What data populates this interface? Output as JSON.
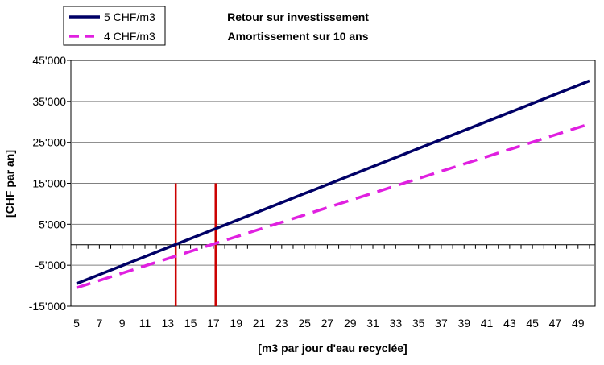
{
  "chart_data": {
    "type": "line",
    "title": "Retour sur investissement",
    "subtitle": "Amortissement sur 10 ans",
    "xlabel": "[m3 par jour d'eau recyclée]",
    "ylabel": "[CHF par an]",
    "xlim": [
      4.5,
      50.5
    ],
    "ylim": [
      -15000,
      45000
    ],
    "x_ticks": [
      5,
      7,
      9,
      11,
      13,
      15,
      17,
      19,
      21,
      23,
      25,
      27,
      29,
      31,
      33,
      35,
      37,
      39,
      41,
      43,
      45,
      47,
      49
    ],
    "x_tick_labels": [
      "5",
      "7",
      "9",
      "11",
      "13",
      "15",
      "17",
      "19",
      "21",
      "23",
      "25",
      "27",
      "29",
      "31",
      "33",
      "35",
      "37",
      "39",
      "41",
      "43",
      "45",
      "47",
      "49"
    ],
    "y_ticks": [
      -15000,
      -5000,
      5000,
      15000,
      25000,
      35000,
      45000
    ],
    "y_tick_labels": [
      "-15'000",
      "-5'000",
      "5'000",
      "15'000",
      "25'000",
      "35'000",
      "45'000"
    ],
    "grid": true,
    "legend_position": "top-left",
    "series": [
      {
        "name": "5 CHF/m3",
        "color": "#000066",
        "style": "solid",
        "x": [
          5,
          50
        ],
        "y": [
          -9500,
          40000
        ]
      },
      {
        "name": "4 CHF/m3",
        "color": "#E020E0",
        "style": "dashed",
        "x": [
          5,
          50
        ],
        "y": [
          -10500,
          29500
        ]
      }
    ],
    "annotations": [
      {
        "type": "vline",
        "x": 13.7,
        "y_range": [
          -15000,
          15000
        ],
        "color": "#CC0000"
      },
      {
        "type": "vline",
        "x": 17.2,
        "y_range": [
          -15000,
          15000
        ],
        "color": "#CC0000"
      }
    ]
  }
}
